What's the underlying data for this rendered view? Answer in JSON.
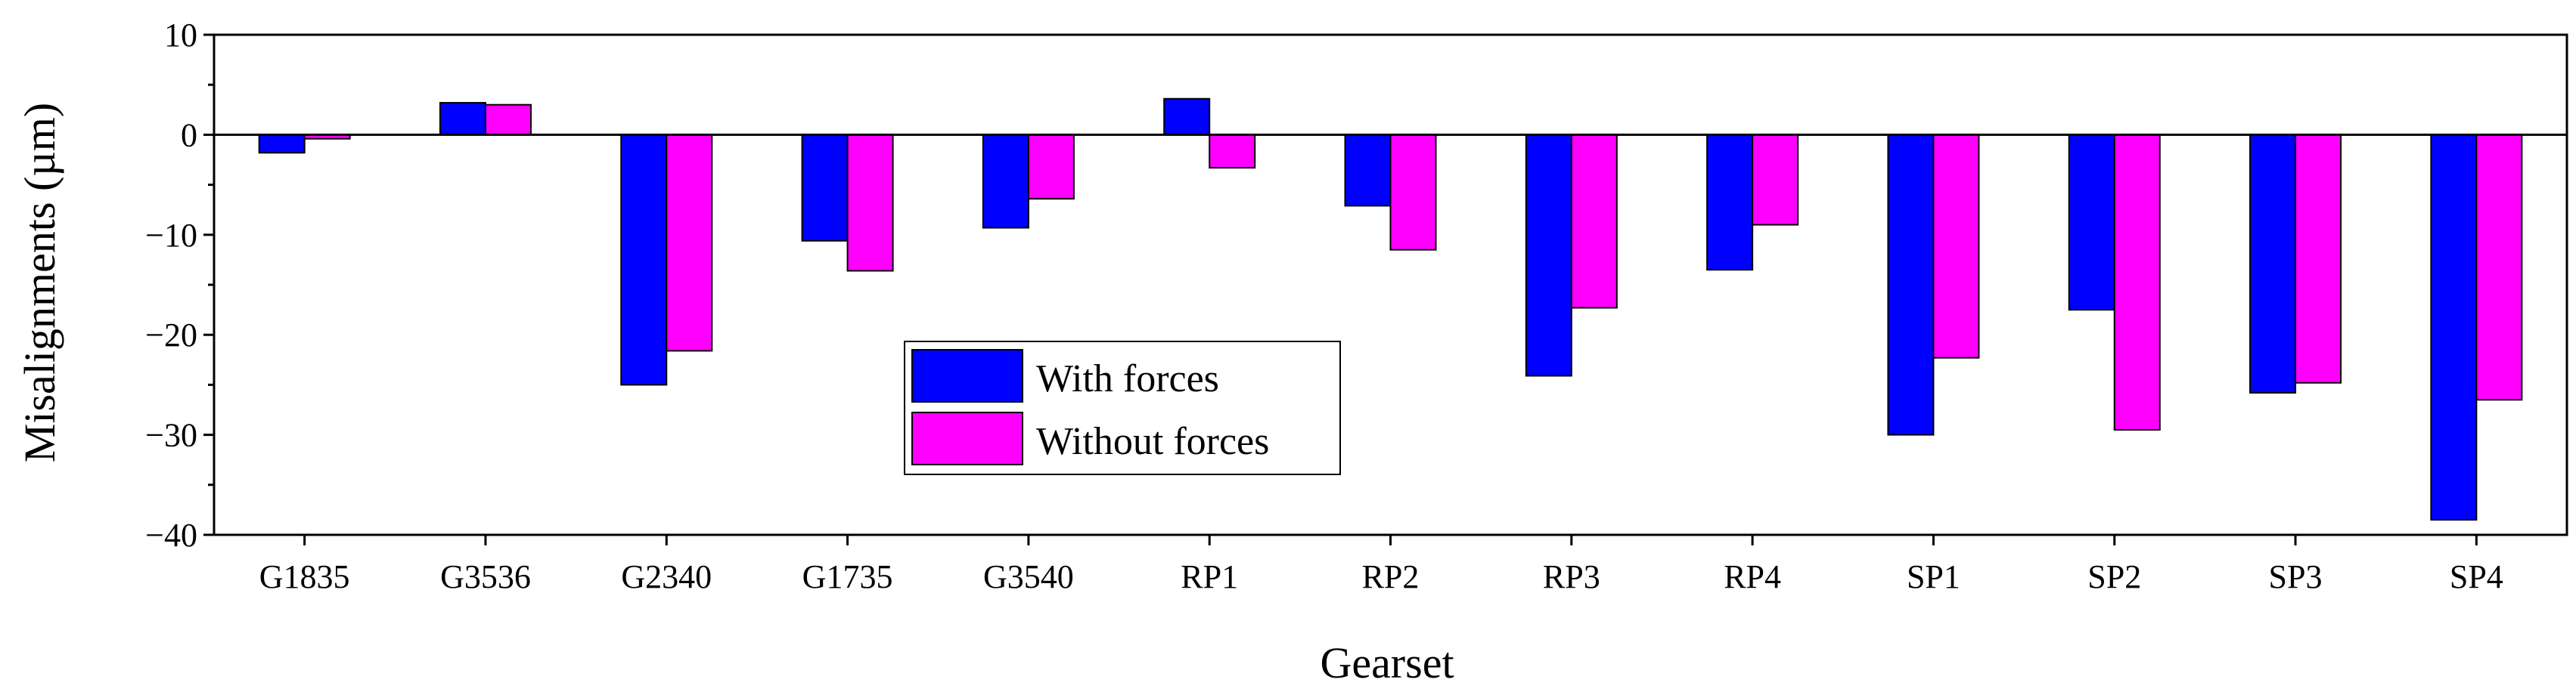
{
  "chart_data": {
    "type": "bar",
    "title": "",
    "xlabel": "Gearset",
    "ylabel": "Misalignments (µm)",
    "ylim": [
      -40,
      10
    ],
    "yticks": [
      10,
      0,
      -10,
      -20,
      -30,
      -40
    ],
    "categories": [
      "G1835",
      "G3536",
      "G2340",
      "G1735",
      "G3540",
      "RP1",
      "RP2",
      "RP3",
      "RP4",
      "SP1",
      "SP2",
      "SP3",
      "SP4"
    ],
    "series": [
      {
        "name": "With forces",
        "color": "#0000FF",
        "values": [
          -1.8,
          3.2,
          -25.0,
          -10.6,
          -9.3,
          3.6,
          -7.1,
          -24.1,
          -13.5,
          -30.0,
          -17.5,
          -25.8,
          -38.5
        ]
      },
      {
        "name": "Without forces",
        "color": "#FF00FF",
        "values": [
          -0.4,
          3.0,
          -21.6,
          -13.6,
          -6.4,
          -3.3,
          -11.5,
          -17.3,
          -9.0,
          -22.3,
          -29.5,
          -24.8,
          -26.5
        ]
      }
    ],
    "legend_position": "center-inside"
  }
}
